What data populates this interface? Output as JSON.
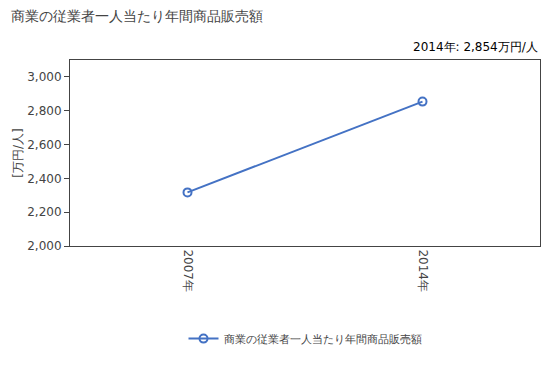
{
  "chart_data": {
    "type": "line",
    "title": "商業の従業者一人当たり年間商品販売額",
    "ylabel": "[万円/人]",
    "annotation": "2014年: 2,854万円/人",
    "x": [
      2007,
      2014
    ],
    "series": [
      {
        "name": "商業の従業者一人当たり年間商品販売額",
        "color": "#4472C4",
        "marker": "circle-open",
        "values": [
          2317,
          2854
        ]
      }
    ],
    "xlim": [
      2003.5,
      2017.5
    ],
    "xticks": [
      {
        "value": 2007,
        "label": "2007年"
      },
      {
        "value": 2014,
        "label": "2014年"
      }
    ],
    "ylim": [
      2000,
      3100
    ],
    "yticks": [
      {
        "value": 2000,
        "label": "2,000"
      },
      {
        "value": 2200,
        "label": "2,200"
      },
      {
        "value": 2400,
        "label": "2,400"
      },
      {
        "value": 2600,
        "label": "2,600"
      },
      {
        "value": 2800,
        "label": "2,800"
      },
      {
        "value": 3000,
        "label": "3,000"
      }
    ],
    "grid": false,
    "legend": "bottom"
  }
}
